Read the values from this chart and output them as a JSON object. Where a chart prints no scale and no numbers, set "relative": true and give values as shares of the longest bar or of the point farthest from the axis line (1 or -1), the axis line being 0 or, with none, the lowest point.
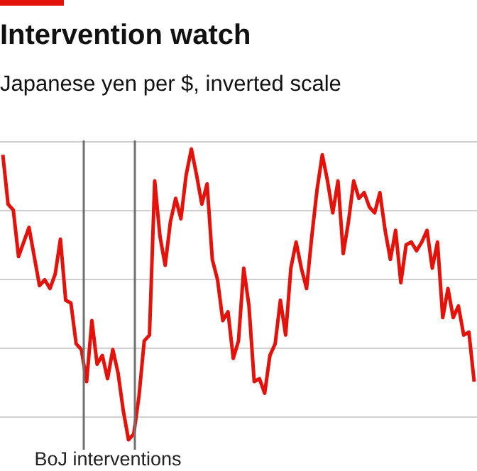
{
  "chart_data": {
    "type": "line",
    "title": "Intervention watch",
    "subtitle": "Japanese yen per $, inverted scale",
    "relative": true,
    "grid": true,
    "tick_labels": false,
    "marker": "none",
    "line_style": "solid",
    "categories": [
      null,
      null,
      null,
      null,
      null,
      null,
      null,
      null,
      null,
      null,
      null,
      null,
      null,
      null,
      null,
      null,
      null,
      null,
      null,
      null,
      null,
      null,
      null,
      null,
      null,
      null,
      null,
      null,
      null,
      null,
      null,
      null,
      null,
      null,
      null,
      null,
      null,
      null,
      null,
      null,
      null,
      null,
      null,
      null,
      null,
      null,
      null,
      null,
      null,
      null,
      null,
      null,
      null,
      null,
      null,
      null,
      null,
      null,
      null,
      null,
      null,
      null,
      null,
      null,
      null,
      null,
      null,
      null,
      null,
      null,
      null,
      null,
      null,
      null,
      null,
      null,
      null,
      null,
      null,
      null,
      null,
      null,
      null,
      null,
      null,
      null,
      null,
      null,
      null,
      null,
      null
    ],
    "series": [
      {
        "color": "#e3120b",
        "values": [
          0.98,
          0.81,
          0.79,
          0.63,
          0.68,
          0.73,
          0.63,
          0.53,
          0.55,
          0.52,
          0.57,
          0.69,
          0.48,
          0.47,
          0.33,
          0.31,
          0.2,
          0.41,
          0.26,
          0.29,
          0.21,
          0.31,
          0.23,
          0.1,
          0,
          0.02,
          0.15,
          0.34,
          0.36,
          0.89,
          0.7,
          0.6,
          0.75,
          0.83,
          0.76,
          0.91,
          1.0,
          0.91,
          0.81,
          0.88,
          0.62,
          0.55,
          0.41,
          0.44,
          0.28,
          0.34,
          0.59,
          0.46,
          0.2,
          0.21,
          0.16,
          0.29,
          0.33,
          0.48,
          0.36,
          0.59,
          0.68,
          0.59,
          0.52,
          0.7,
          0.86,
          0.98,
          0.89,
          0.78,
          0.89,
          0.64,
          0.75,
          0.89,
          0.83,
          0.85,
          0.8,
          0.78,
          0.85,
          0.72,
          0.62,
          0.72,
          0.54,
          0.67,
          0.68,
          0.65,
          0.68,
          0.72,
          0.59,
          0.68,
          0.42,
          0.52,
          0.42,
          0.46,
          0.36,
          0.37,
          0.2
        ]
      }
    ],
    "annotations": [
      "BoJ interventions"
    ]
  }
}
